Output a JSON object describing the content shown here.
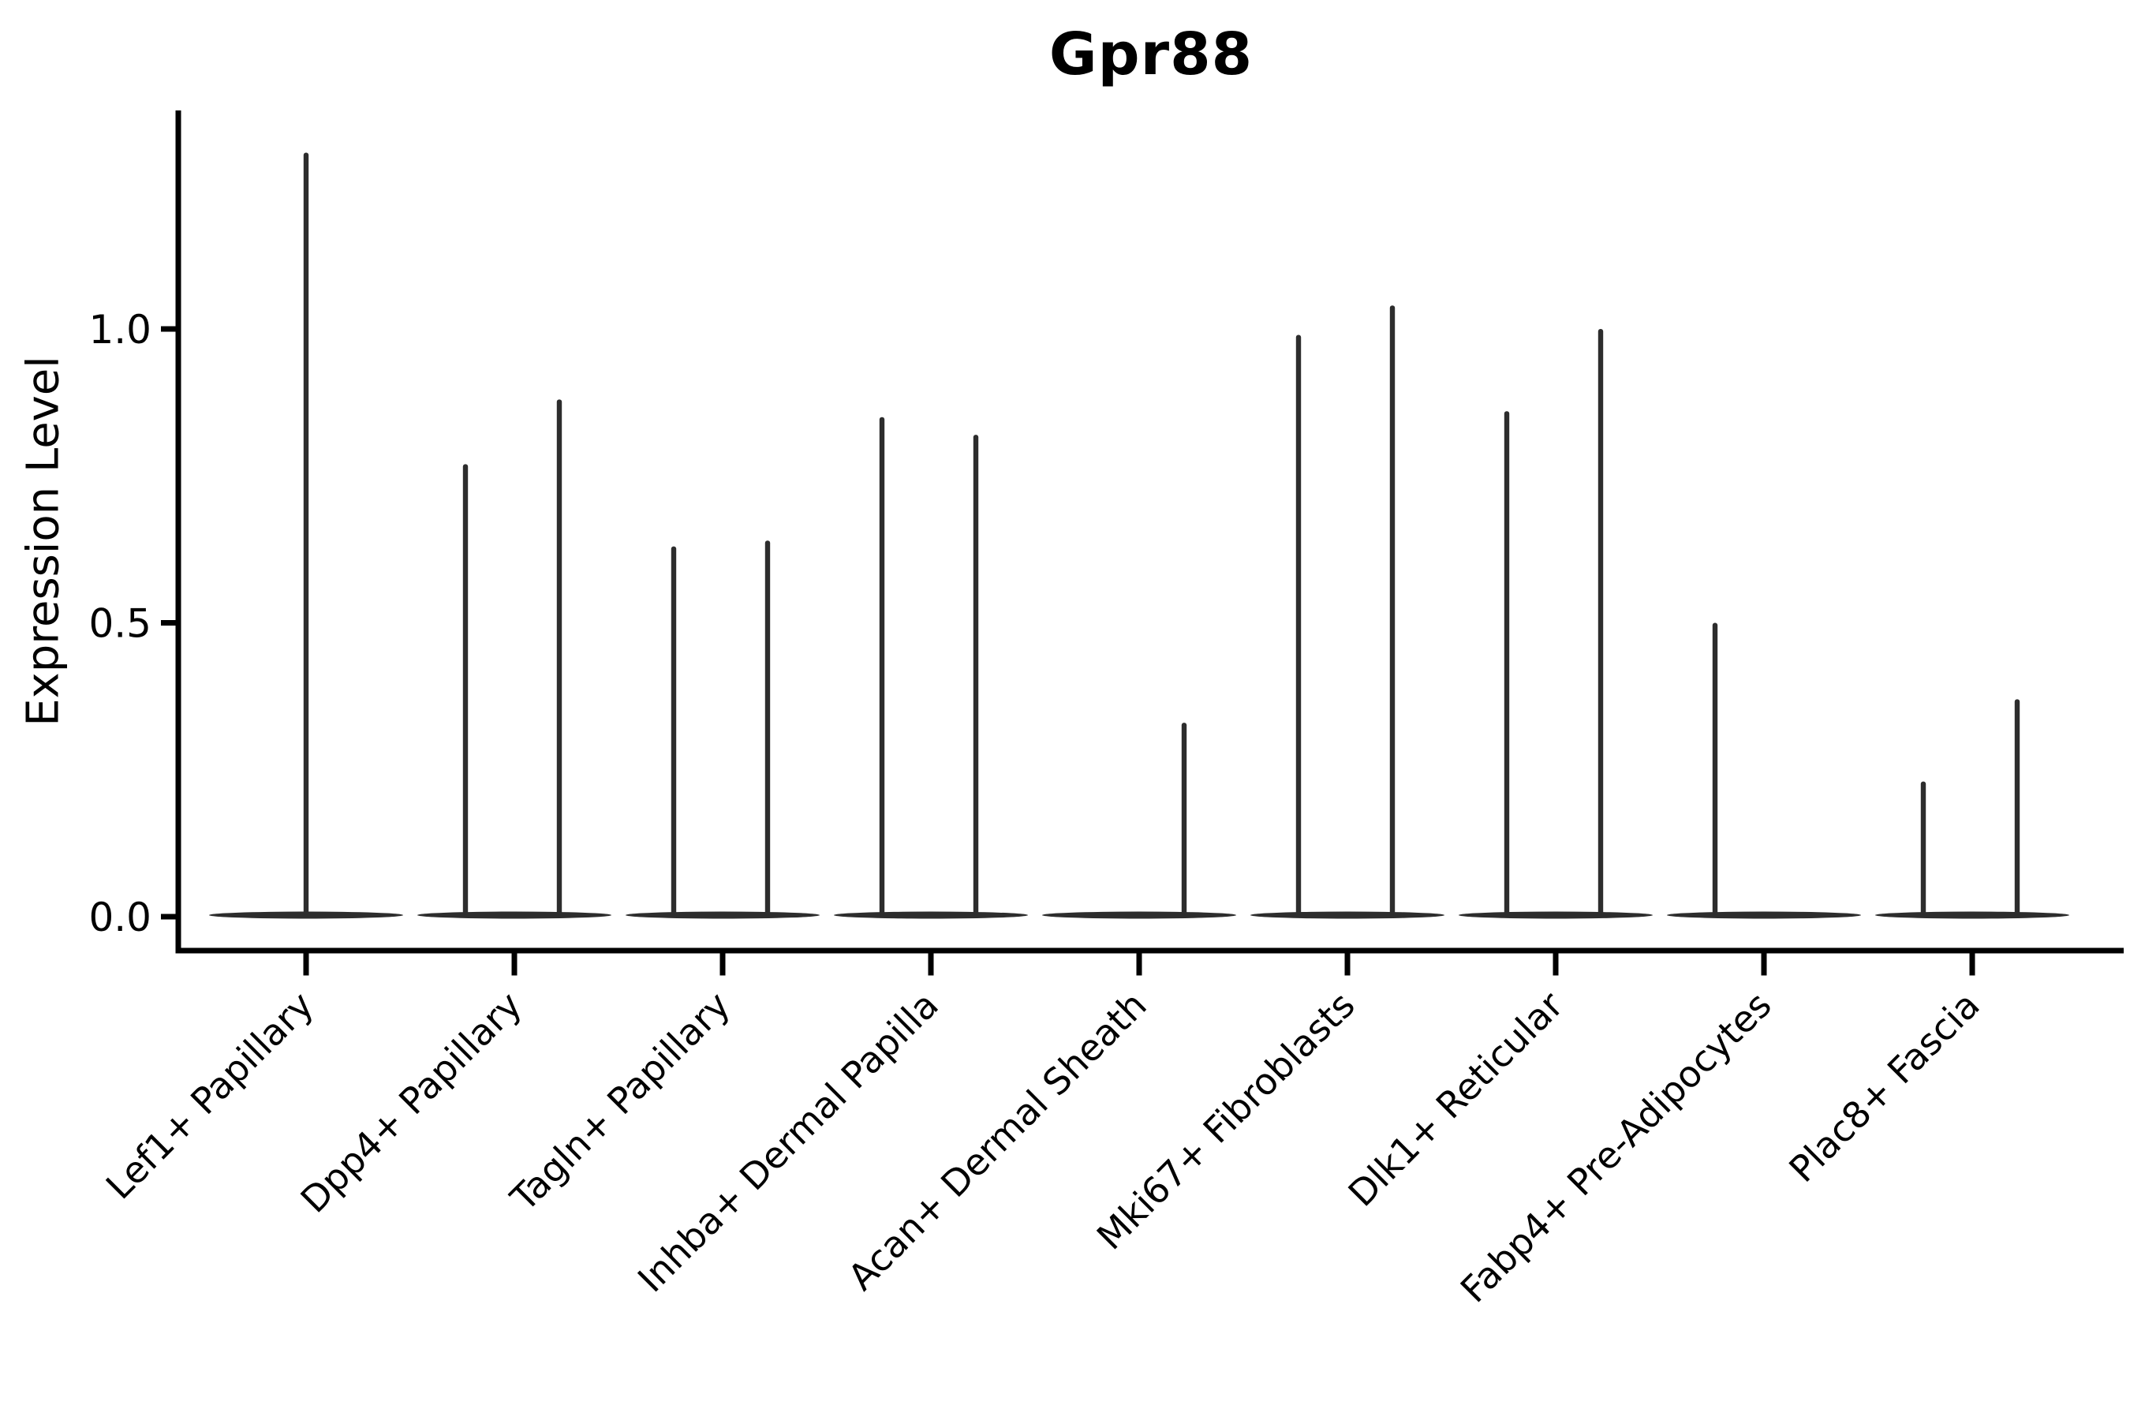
{
  "figure": {
    "title": "Gpr88",
    "y_axis_label": "Expression Level"
  },
  "chart_data": {
    "type": "violin",
    "title": "Gpr88",
    "xlabel": "",
    "ylabel": "Expression Level",
    "ylim": [
      -0.06,
      1.37
    ],
    "yticks": [
      0.0,
      0.5,
      1.0
    ],
    "ytick_labels": [
      "0.0",
      "0.5",
      "1.0"
    ],
    "grid": false,
    "legend": false,
    "colors": {
      "violin": "#2d2d2d",
      "axis": "#000000",
      "text": "#000000",
      "background": "#ffffff"
    },
    "description": "Violin plot of Gpr88 expression per fibroblast cluster; each cluster shows a flat violin body at 0 expression with thin spikes reaching the maximum expression value. Clusters with two spikes contain two dodged violins (left/right); clusters with a single violin show one spike.",
    "categories": [
      "Lef1+ Papillary",
      "Dpp4+ Papillary",
      "Tagln+ Papillary",
      "Inhba+ Dermal Papilla",
      "Acan+ Dermal Sheath",
      "Mki67+ Fibroblasts",
      "Dlk1+ Reticular",
      "Fabp4+ Pre-Adipocytes",
      "Plac8+ Fascia"
    ],
    "violins": [
      {
        "category": "Lef1+ Papillary",
        "baseline_at_zero": true,
        "spikes": [
          {
            "position": "center",
            "max_expression": 1.3
          }
        ]
      },
      {
        "category": "Dpp4+ Papillary",
        "baseline_at_zero": true,
        "spikes": [
          {
            "position": "left",
            "max_expression": 0.77
          },
          {
            "position": "right",
            "max_expression": 0.88
          }
        ]
      },
      {
        "category": "Tagln+ Papillary",
        "baseline_at_zero": true,
        "spikes": [
          {
            "position": "left",
            "max_expression": 0.63
          },
          {
            "position": "right",
            "max_expression": 0.64
          }
        ]
      },
      {
        "category": "Inhba+ Dermal Papilla",
        "baseline_at_zero": true,
        "spikes": [
          {
            "position": "left",
            "max_expression": 0.85
          },
          {
            "position": "right",
            "max_expression": 0.82
          }
        ]
      },
      {
        "category": "Acan+ Dermal Sheath",
        "baseline_at_zero": true,
        "spikes": [
          {
            "position": "right",
            "max_expression": 0.33
          }
        ]
      },
      {
        "category": "Mki67+ Fibroblasts",
        "baseline_at_zero": true,
        "spikes": [
          {
            "position": "left",
            "max_expression": 0.99
          },
          {
            "position": "right",
            "max_expression": 1.04
          }
        ]
      },
      {
        "category": "Dlk1+ Reticular",
        "baseline_at_zero": true,
        "spikes": [
          {
            "position": "left",
            "max_expression": 0.86
          },
          {
            "position": "right",
            "max_expression": 1.0
          }
        ]
      },
      {
        "category": "Fabp4+ Pre-Adipocytes",
        "baseline_at_zero": true,
        "spikes": [
          {
            "position": "left",
            "max_expression": 0.5
          }
        ]
      },
      {
        "category": "Plac8+ Fascia",
        "baseline_at_zero": true,
        "spikes": [
          {
            "position": "left",
            "max_expression": 0.23
          },
          {
            "position": "right",
            "max_expression": 0.37
          }
        ]
      }
    ]
  }
}
